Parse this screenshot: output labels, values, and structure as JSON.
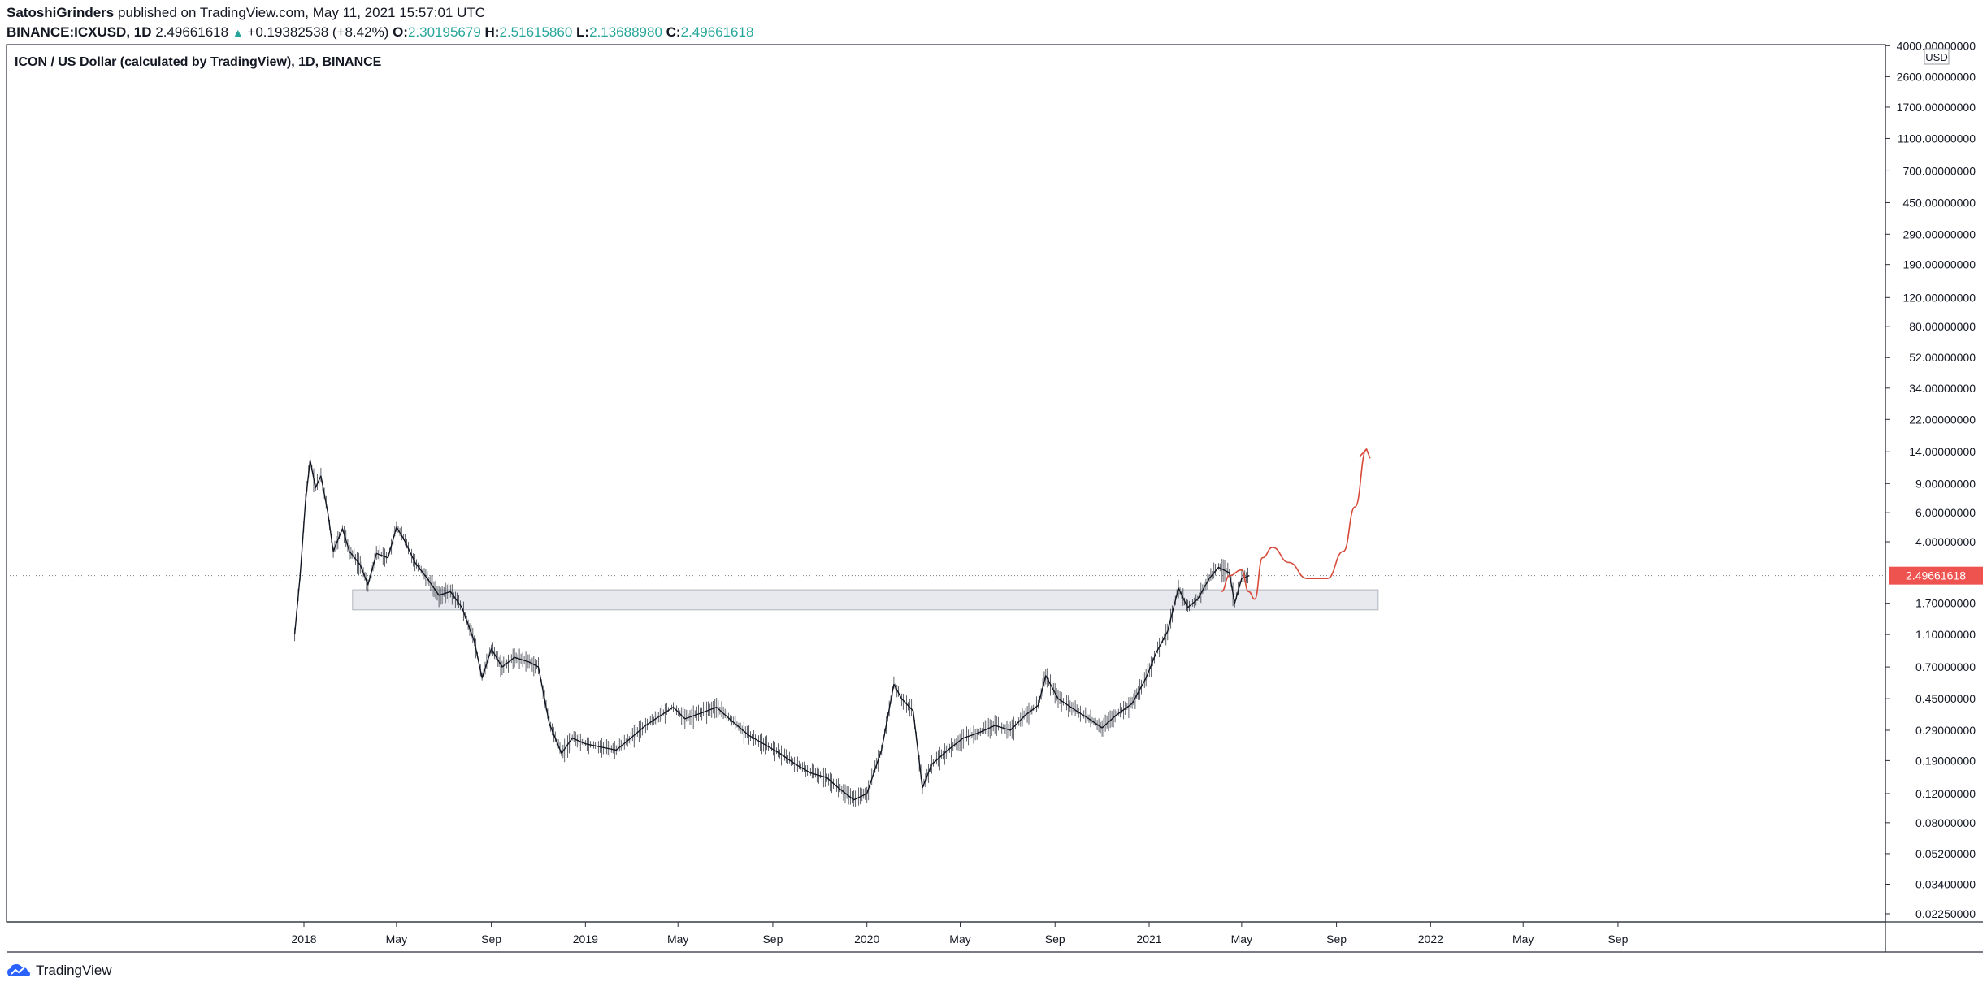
{
  "header": {
    "author": "SatoshiGrinders",
    "published": "published on TradingView.com, May 11, 2021 15:57:01 UTC",
    "symbol": "BINANCE:ICXUSD, 1D",
    "last": "2.49661618",
    "change": "+0.19382538 (+8.42%)",
    "o_label": "O:",
    "o_value": "2.30195679",
    "h_label": "H:",
    "h_value": "2.51615860",
    "l_label": "L:",
    "l_value": "2.13688980",
    "c_label": "C:",
    "c_value": "2.49661618"
  },
  "footer": {
    "brand": "TradingView",
    "logo_icon": "tradingview-cloud-icon"
  },
  "colors": {
    "teal": "#26a69a",
    "price_tag": "#ef5350",
    "projection": "#d84a3a",
    "zone_fill": "#e8e9ee",
    "candles": "#131722"
  },
  "chart_data": {
    "type": "line",
    "title": "ICON / US Dollar (calculated by TradingView), 1D, BINANCE",
    "y_scale": "log",
    "y_unit": "USD",
    "y_ticks": [
      "4000.00000000",
      "2600.00000000",
      "1700.00000000",
      "1100.00000000",
      "700.00000000",
      "450.00000000",
      "290.00000000",
      "190.00000000",
      "120.00000000",
      "80.00000000",
      "52.00000000",
      "34.00000000",
      "22.00000000",
      "14.00000000",
      "9.00000000",
      "6.00000000",
      "4.00000000",
      "1.70000000",
      "1.10000000",
      "0.70000000",
      "0.45000000",
      "0.29000000",
      "0.19000000",
      "0.12000000",
      "0.08000000",
      "0.05200000",
      "0.03400000",
      "0.02250000"
    ],
    "x_ticks": [
      "2018",
      "May",
      "Sep",
      "2019",
      "May",
      "Sep",
      "2020",
      "May",
      "Sep",
      "2021",
      "May",
      "Sep",
      "2022",
      "May",
      "Sep"
    ],
    "last_price_label": "2.49661618",
    "series": [
      {
        "values": [
          [
            "2017-12-20",
            1.1
          ],
          [
            "2017-12-27",
            2.5
          ],
          [
            "2018-01-03",
            7.0
          ],
          [
            "2018-01-09",
            12.5
          ],
          [
            "2018-01-16",
            8.5
          ],
          [
            "2018-01-23",
            10.0
          ],
          [
            "2018-02-01",
            6.0
          ],
          [
            "2018-02-08",
            3.5
          ],
          [
            "2018-02-20",
            4.8
          ],
          [
            "2018-03-01",
            3.5
          ],
          [
            "2018-03-15",
            2.9
          ],
          [
            "2018-03-25",
            2.2
          ],
          [
            "2018-04-05",
            3.4
          ],
          [
            "2018-04-20",
            3.2
          ],
          [
            "2018-05-01",
            4.9
          ],
          [
            "2018-05-10",
            4.2
          ],
          [
            "2018-05-25",
            3.0
          ],
          [
            "2018-06-10",
            2.4
          ],
          [
            "2018-06-25",
            1.9
          ],
          [
            "2018-07-10",
            2.0
          ],
          [
            "2018-07-25",
            1.6
          ],
          [
            "2018-08-10",
            1.0
          ],
          [
            "2018-08-20",
            0.6
          ],
          [
            "2018-09-01",
            0.9
          ],
          [
            "2018-09-15",
            0.7
          ],
          [
            "2018-10-01",
            0.8
          ],
          [
            "2018-10-20",
            0.75
          ],
          [
            "2018-11-01",
            0.7
          ],
          [
            "2018-11-15",
            0.32
          ],
          [
            "2018-12-01",
            0.21
          ],
          [
            "2018-12-15",
            0.26
          ],
          [
            "2019-01-01",
            0.24
          ],
          [
            "2019-01-20",
            0.23
          ],
          [
            "2019-02-10",
            0.22
          ],
          [
            "2019-03-01",
            0.26
          ],
          [
            "2019-03-20",
            0.31
          ],
          [
            "2019-04-10",
            0.36
          ],
          [
            "2019-04-25",
            0.4
          ],
          [
            "2019-05-10",
            0.34
          ],
          [
            "2019-06-01",
            0.37
          ],
          [
            "2019-06-20",
            0.4
          ],
          [
            "2019-07-10",
            0.33
          ],
          [
            "2019-08-01",
            0.27
          ],
          [
            "2019-08-20",
            0.24
          ],
          [
            "2019-09-10",
            0.21
          ],
          [
            "2019-10-01",
            0.18
          ],
          [
            "2019-10-20",
            0.16
          ],
          [
            "2019-11-10",
            0.15
          ],
          [
            "2019-11-25",
            0.13
          ],
          [
            "2019-12-15",
            0.11
          ],
          [
            "2020-01-01",
            0.12
          ],
          [
            "2020-01-20",
            0.22
          ],
          [
            "2020-02-05",
            0.55
          ],
          [
            "2020-02-15",
            0.45
          ],
          [
            "2020-03-01",
            0.38
          ],
          [
            "2020-03-13",
            0.13
          ],
          [
            "2020-03-25",
            0.18
          ],
          [
            "2020-04-15",
            0.22
          ],
          [
            "2020-05-05",
            0.26
          ],
          [
            "2020-05-25",
            0.28
          ],
          [
            "2020-06-15",
            0.31
          ],
          [
            "2020-07-05",
            0.29
          ],
          [
            "2020-07-25",
            0.36
          ],
          [
            "2020-08-10",
            0.41
          ],
          [
            "2020-08-20",
            0.62
          ],
          [
            "2020-09-05",
            0.45
          ],
          [
            "2020-09-25",
            0.39
          ],
          [
            "2020-10-15",
            0.34
          ],
          [
            "2020-11-01",
            0.3
          ],
          [
            "2020-11-20",
            0.36
          ],
          [
            "2020-12-10",
            0.42
          ],
          [
            "2020-12-28",
            0.6
          ],
          [
            "2021-01-10",
            0.85
          ],
          [
            "2021-01-25",
            1.15
          ],
          [
            "2021-02-08",
            2.1
          ],
          [
            "2021-02-20",
            1.6
          ],
          [
            "2021-03-05",
            1.8
          ],
          [
            "2021-03-20",
            2.4
          ],
          [
            "2021-04-01",
            2.8
          ],
          [
            "2021-04-15",
            2.6
          ],
          [
            "2021-04-22",
            1.7
          ],
          [
            "2021-05-01",
            2.4
          ],
          [
            "2021-05-11",
            2.5
          ]
        ]
      }
    ],
    "projection": [
      [
        "2021-04-05",
        2.0
      ],
      [
        "2021-04-15",
        2.5
      ],
      [
        "2021-05-01",
        2.7
      ],
      [
        "2021-05-10",
        2.0
      ],
      [
        "2021-05-18",
        1.8
      ],
      [
        "2021-05-28",
        3.2
      ],
      [
        "2021-06-10",
        3.7
      ],
      [
        "2021-07-01",
        3.0
      ],
      [
        "2021-07-25",
        2.4
      ],
      [
        "2021-08-20",
        2.4
      ],
      [
        "2021-09-10",
        3.5
      ],
      [
        "2021-09-25",
        6.5
      ],
      [
        "2021-10-10",
        14.5
      ]
    ],
    "support_zone": {
      "from": "2018-03-05",
      "to": "2021-10-25",
      "low": 1.55,
      "high": 2.05
    }
  }
}
